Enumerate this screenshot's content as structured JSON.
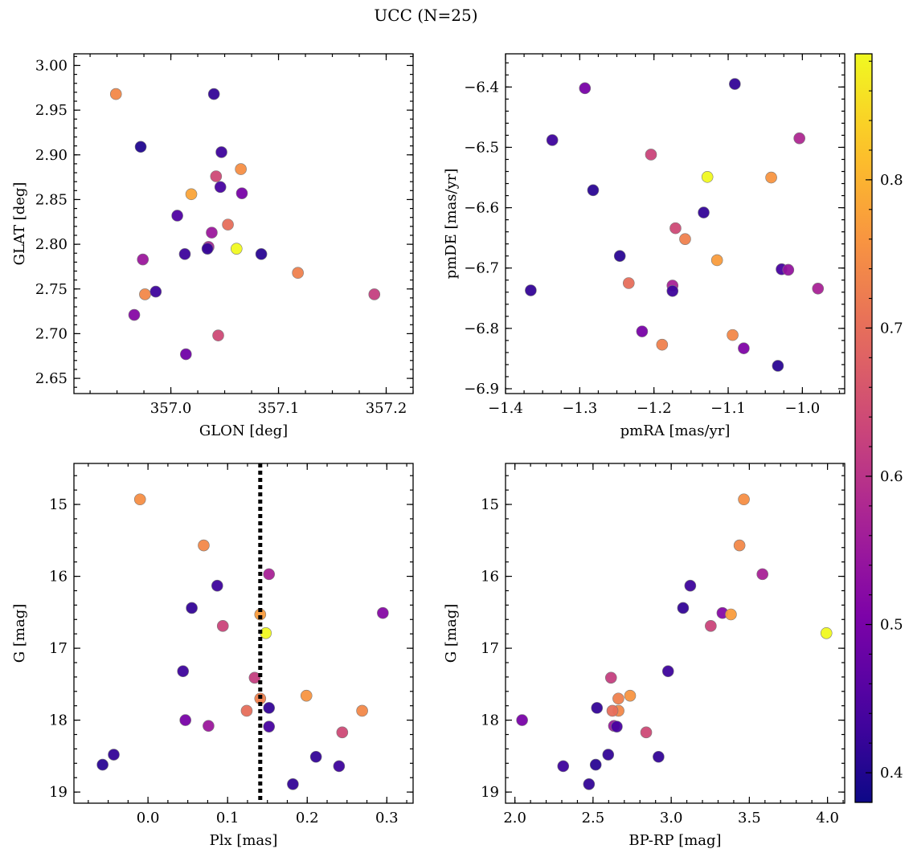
{
  "figure": {
    "title": "UCC (N=25)"
  },
  "colorbar": {
    "min": 0.38,
    "max": 0.885,
    "ticks": [
      0.4,
      0.5,
      0.6,
      0.7,
      0.8
    ],
    "tick_labels": [
      "0.4",
      "0.5",
      "0.6",
      "0.7",
      "0.8"
    ],
    "colormap": "plasma"
  },
  "chart_data": [
    {
      "type": "scatter",
      "panel": "top-left",
      "xlabel": "GLON [deg]",
      "ylabel": "GLAT [deg]",
      "xlim": [
        356.91,
        357.225
      ],
      "ylim": [
        2.633,
        3.013
      ],
      "xticks": [
        357.0,
        357.1,
        357.2
      ],
      "xtick_labels": [
        "357.0",
        "357.1",
        "357.2"
      ],
      "yticks": [
        2.65,
        2.7,
        2.75,
        2.8,
        2.85,
        2.9,
        2.95,
        3.0
      ],
      "ytick_labels": [
        "2.65",
        "2.70",
        "2.75",
        "2.80",
        "2.85",
        "2.90",
        "2.95",
        "3.00"
      ],
      "x": [
        356.949,
        357.04,
        356.972,
        357.047,
        357.065,
        357.042,
        357.046,
        357.066,
        357.019,
        357.006,
        357.053,
        357.038,
        356.974,
        357.035,
        357.061,
        357.013,
        357.034,
        357.084,
        357.118,
        356.976,
        356.986,
        357.189,
        356.966,
        357.044,
        357.014
      ],
      "y": [
        2.968,
        2.968,
        2.909,
        2.903,
        2.884,
        2.876,
        2.864,
        2.857,
        2.856,
        2.832,
        2.822,
        2.813,
        2.783,
        2.797,
        2.795,
        2.789,
        2.795,
        2.789,
        2.768,
        2.744,
        2.747,
        2.744,
        2.721,
        2.698,
        2.677
      ],
      "c": [
        0.74,
        0.42,
        0.4,
        0.43,
        0.75,
        0.64,
        0.44,
        0.5,
        0.78,
        0.45,
        0.7,
        0.55,
        0.55,
        0.57,
        0.885,
        0.43,
        0.42,
        0.41,
        0.73,
        0.74,
        0.43,
        0.62,
        0.52,
        0.64,
        0.49
      ]
    },
    {
      "type": "scatter",
      "panel": "top-right",
      "xlabel": "pmRA [mas/yr]",
      "ylabel": "pmDE [mas/yr]",
      "xlim": [
        -1.4,
        -0.943
      ],
      "ylim": [
        -6.908,
        -6.345
      ],
      "xticks": [
        -1.4,
        -1.3,
        -1.2,
        -1.1,
        -1.0
      ],
      "xtick_labels": [
        "−1.4",
        "−1.3",
        "−1.2",
        "−1.1",
        "−1.0"
      ],
      "yticks": [
        -6.9,
        -6.8,
        -6.7,
        -6.6,
        -6.5,
        -6.4
      ],
      "ytick_labels": [
        "−6.9",
        "−6.8",
        "−6.7",
        "−6.6",
        "−6.5",
        "−6.4"
      ],
      "x": [
        -1.293,
        -1.091,
        -1.337,
        -1.004,
        -1.204,
        -1.128,
        -1.042,
        -1.282,
        -1.133,
        -1.171,
        -1.158,
        -1.115,
        -1.246,
        -1.028,
        -1.019,
        -0.979,
        -1.366,
        -1.175,
        -1.175,
        -1.234,
        -1.216,
        -1.094,
        -1.079,
        -1.189,
        -1.033
      ],
      "y": [
        -6.402,
        -6.395,
        -6.488,
        -6.485,
        -6.512,
        -6.549,
        -6.55,
        -6.571,
        -6.608,
        -6.634,
        -6.652,
        -6.687,
        -6.68,
        -6.702,
        -6.703,
        -6.734,
        -6.737,
        -6.729,
        -6.738,
        -6.725,
        -6.805,
        -6.811,
        -6.833,
        -6.827,
        -6.862
      ],
      "c": [
        0.5,
        0.42,
        0.43,
        0.58,
        0.63,
        0.885,
        0.76,
        0.41,
        0.42,
        0.64,
        0.73,
        0.77,
        0.41,
        0.44,
        0.54,
        0.57,
        0.42,
        0.57,
        0.43,
        0.7,
        0.5,
        0.74,
        0.51,
        0.73,
        0.41
      ]
    },
    {
      "type": "scatter",
      "panel": "bottom-left",
      "xlabel": "Plx [mas]",
      "ylabel": "G [mag]",
      "xlim": [
        -0.093,
        0.333
      ],
      "ylim": [
        19.155,
        14.43
      ],
      "y_inverted": true,
      "xticks": [
        0.0,
        0.1,
        0.2,
        0.3
      ],
      "xtick_labels": [
        "0.0",
        "0.1",
        "0.2",
        "0.3"
      ],
      "yticks": [
        15,
        16,
        17,
        18,
        19
      ],
      "ytick_labels": [
        "15",
        "16",
        "17",
        "18",
        "19"
      ],
      "vline": {
        "x": 0.141,
        "style": "dotted",
        "color": "#000000"
      },
      "x": [
        -0.01,
        0.07,
        0.152,
        0.087,
        0.295,
        0.055,
        0.094,
        0.141,
        0.148,
        0.044,
        0.134,
        0.141,
        0.199,
        0.269,
        0.124,
        0.152,
        0.047,
        0.076,
        0.152,
        0.244,
        -0.043,
        0.211,
        -0.057,
        0.24,
        0.182
      ],
      "y": [
        14.93,
        15.57,
        15.97,
        16.13,
        16.51,
        16.44,
        16.69,
        16.53,
        16.79,
        17.32,
        17.41,
        17.7,
        17.66,
        17.87,
        17.87,
        17.83,
        18.0,
        18.08,
        18.09,
        18.17,
        18.48,
        18.51,
        18.62,
        18.64,
        18.89
      ],
      "c": [
        0.75,
        0.74,
        0.57,
        0.43,
        0.52,
        0.42,
        0.63,
        0.77,
        0.885,
        0.43,
        0.62,
        0.73,
        0.76,
        0.74,
        0.7,
        0.42,
        0.5,
        0.55,
        0.44,
        0.64,
        0.42,
        0.42,
        0.41,
        0.43,
        0.42
      ]
    },
    {
      "type": "scatter",
      "panel": "bottom-right",
      "xlabel": "BP-RP [mag]",
      "ylabel": "G [mag]",
      "xlim": [
        1.94,
        4.11
      ],
      "ylim": [
        19.155,
        14.43
      ],
      "y_inverted": true,
      "xticks": [
        2.0,
        2.5,
        3.0,
        3.5,
        4.0
      ],
      "xtick_labels": [
        "2.0",
        "2.5",
        "3.0",
        "3.5",
        "4.0"
      ],
      "yticks": [
        15,
        16,
        17,
        18,
        19
      ],
      "ytick_labels": [
        "15",
        "16",
        "17",
        "18",
        "19"
      ],
      "x": [
        3.465,
        3.437,
        3.584,
        3.122,
        3.328,
        3.076,
        3.253,
        3.382,
        3.993,
        2.98,
        2.615,
        2.662,
        2.737,
        2.663,
        2.624,
        2.525,
        2.046,
        2.634,
        2.652,
        2.84,
        2.597,
        2.919,
        2.517,
        2.309,
        2.474
      ],
      "y": [
        14.93,
        15.57,
        15.97,
        16.13,
        16.51,
        16.44,
        16.69,
        16.53,
        16.79,
        17.32,
        17.41,
        17.7,
        17.66,
        17.87,
        17.87,
        17.83,
        18.0,
        18.08,
        18.09,
        18.17,
        18.48,
        18.51,
        18.62,
        18.64,
        18.89
      ],
      "c": [
        0.75,
        0.74,
        0.57,
        0.43,
        0.52,
        0.42,
        0.63,
        0.77,
        0.885,
        0.43,
        0.62,
        0.73,
        0.76,
        0.74,
        0.7,
        0.42,
        0.5,
        0.55,
        0.44,
        0.64,
        0.42,
        0.42,
        0.41,
        0.43,
        0.42
      ]
    }
  ]
}
